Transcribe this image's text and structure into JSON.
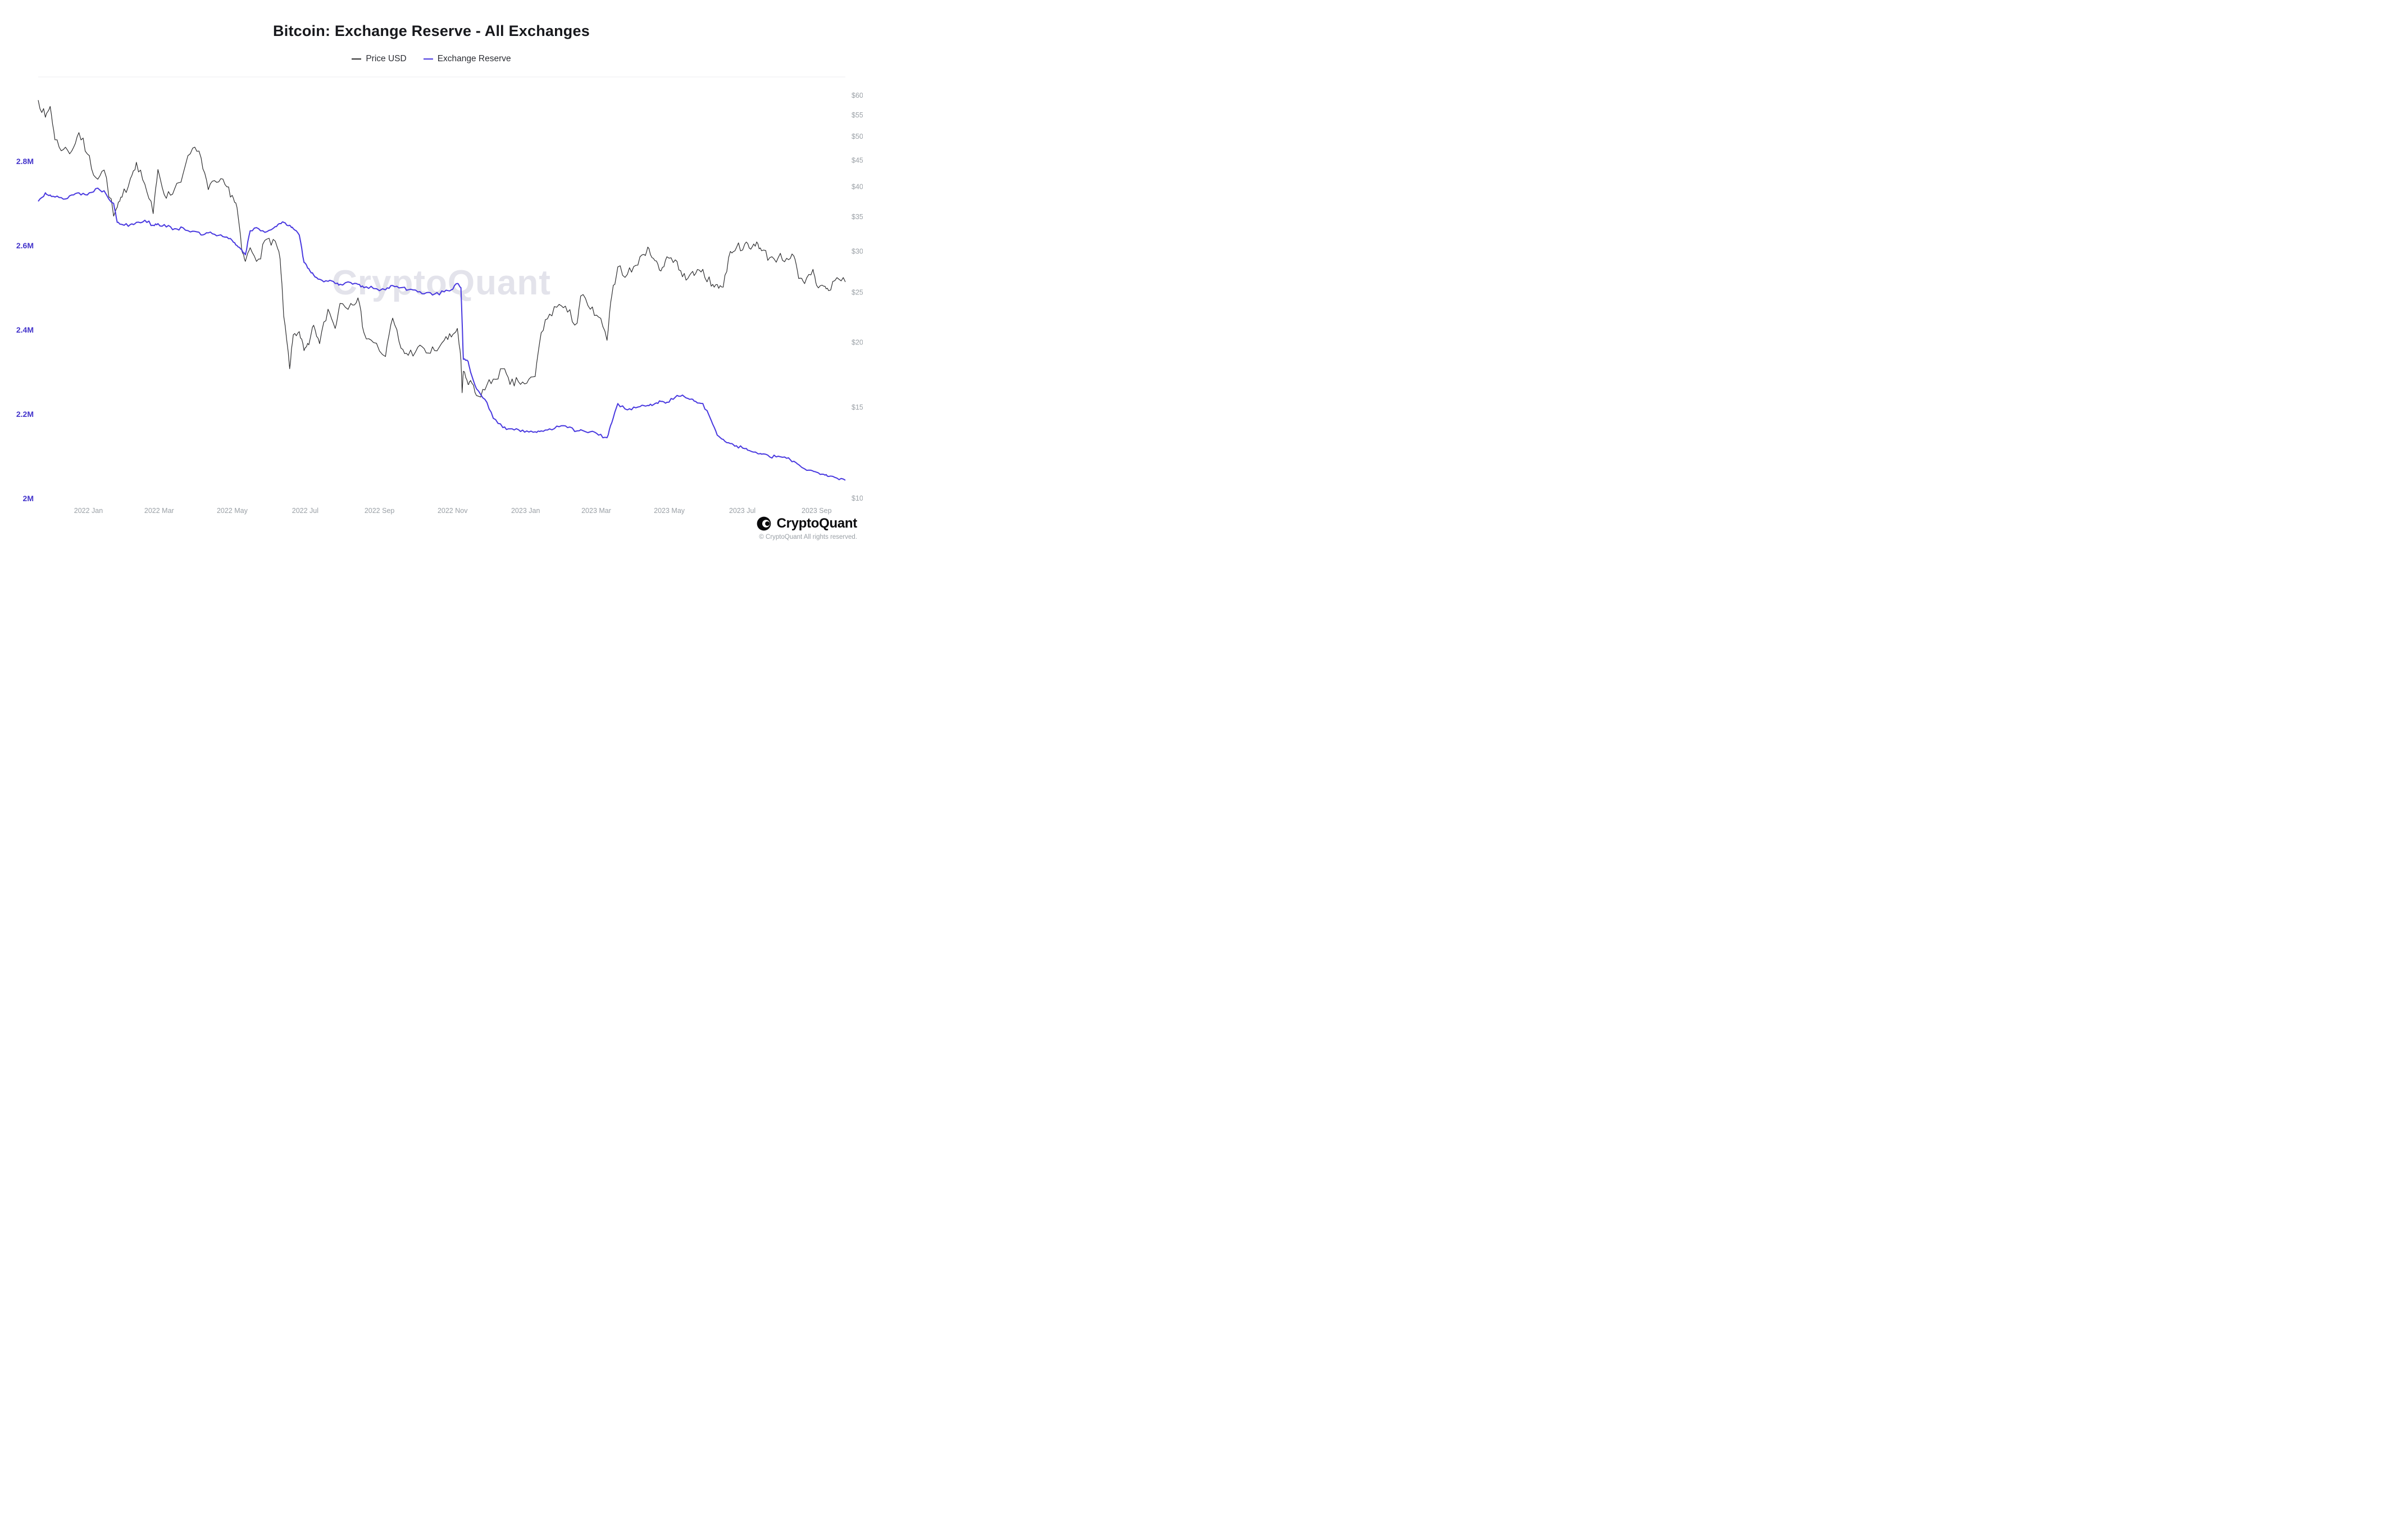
{
  "header": {
    "title": "Bitcoin: Exchange Reserve - All Exchanges"
  },
  "legend": [
    {
      "label": "Price USD",
      "color": "#2d2d2f"
    },
    {
      "label": "Exchange Reserve",
      "color": "#4838DF"
    }
  ],
  "watermark": {
    "text": "CryptoQuant"
  },
  "footer": {
    "brand": "CryptoQuant",
    "copyright": "© CryptoQuant All rights reserved."
  },
  "chart_data": {
    "type": "line",
    "title": "Bitcoin: Exchange Reserve - All Exchanges",
    "grid": "off",
    "legend_position": "top",
    "x_dates": [
      "2021-11-20",
      "2021-11-26",
      "2021-11-30",
      "2021-12-04",
      "2021-12-11",
      "2021-12-18",
      "2021-12-24",
      "2021-12-31",
      "2022-01-07",
      "2022-01-14",
      "2022-01-22",
      "2022-01-25",
      "2022-01-29",
      "2022-02-05",
      "2022-02-10",
      "2022-02-17",
      "2022-02-24",
      "2022-02-28",
      "2022-03-07",
      "2022-03-14",
      "2022-03-21",
      "2022-03-29",
      "2022-04-05",
      "2022-04-11",
      "2022-04-18",
      "2022-04-25",
      "2022-05-01",
      "2022-05-05",
      "2022-05-09",
      "2022-05-12",
      "2022-05-16",
      "2022-05-23",
      "2022-05-30",
      "2022-06-06",
      "2022-06-10",
      "2022-06-13",
      "2022-06-18",
      "2022-06-21",
      "2022-06-26",
      "2022-06-30",
      "2022-07-04",
      "2022-07-08",
      "2022-07-13",
      "2022-07-20",
      "2022-07-26",
      "2022-07-30",
      "2022-08-08",
      "2022-08-14",
      "2022-08-19",
      "2022-08-27",
      "2022-09-06",
      "2022-09-12",
      "2022-09-19",
      "2022-09-25",
      "2022-10-03",
      "2022-10-10",
      "2022-10-17",
      "2022-10-25",
      "2022-10-31",
      "2022-11-05",
      "2022-11-08",
      "2022-11-09",
      "2022-11-10",
      "2022-11-14",
      "2022-11-16",
      "2022-11-21",
      "2022-11-28",
      "2022-12-05",
      "2022-12-13",
      "2022-12-19",
      "2022-12-26",
      "2023-01-02",
      "2023-01-09",
      "2023-01-14",
      "2023-01-21",
      "2023-01-29",
      "2023-02-05",
      "2023-02-13",
      "2023-02-16",
      "2023-02-24",
      "2023-03-03",
      "2023-03-10",
      "2023-03-14",
      "2023-03-19",
      "2023-03-27",
      "2023-04-03",
      "2023-04-10",
      "2023-04-14",
      "2023-04-19",
      "2023-04-24",
      "2023-04-29",
      "2023-05-06",
      "2023-05-12",
      "2023-05-18",
      "2023-05-23",
      "2023-05-29",
      "2023-06-05",
      "2023-06-10",
      "2023-06-15",
      "2023-06-21",
      "2023-06-26",
      "2023-07-03",
      "2023-07-08",
      "2023-07-13",
      "2023-07-17",
      "2023-07-24",
      "2023-07-31",
      "2023-08-07",
      "2023-08-13",
      "2023-08-17",
      "2023-08-22",
      "2023-08-29",
      "2023-09-01",
      "2023-09-07",
      "2023-09-11",
      "2023-09-18",
      "2023-09-25"
    ],
    "series": [
      {
        "name": "Price USD",
        "axis": "right",
        "unit": "USD thousands",
        "color": "#2d2d2f",
        "values": [
          58.8,
          54.5,
          57.2,
          49.3,
          47.2,
          46.9,
          50.9,
          46.3,
          41.7,
          43.1,
          35.1,
          36.5,
          38.2,
          41.5,
          44.6,
          40.5,
          35.5,
          43.2,
          38.0,
          39.7,
          42.4,
          47.5,
          45.5,
          39.5,
          40.8,
          40.4,
          38.5,
          36.5,
          30.1,
          28.7,
          30.5,
          29.0,
          31.7,
          31.4,
          29.0,
          22.5,
          17.8,
          20.7,
          21.0,
          19.3,
          19.8,
          21.6,
          19.9,
          23.2,
          21.3,
          23.8,
          23.8,
          24.4,
          20.9,
          20.0,
          18.8,
          22.3,
          19.5,
          18.9,
          19.6,
          19.1,
          19.3,
          20.2,
          20.5,
          21.3,
          18.5,
          16.0,
          17.6,
          16.6,
          16.9,
          15.8,
          16.2,
          17.0,
          17.8,
          16.6,
          16.8,
          16.7,
          17.2,
          20.9,
          22.7,
          23.7,
          22.9,
          21.8,
          24.6,
          23.2,
          22.4,
          20.2,
          24.7,
          28.0,
          27.1,
          28.2,
          29.6,
          30.4,
          28.8,
          27.5,
          29.3,
          28.9,
          26.8,
          27.0,
          27.2,
          27.7,
          25.7,
          25.9,
          25.6,
          30.0,
          30.5,
          31.0,
          30.3,
          31.3,
          30.1,
          29.2,
          29.2,
          29.1,
          29.4,
          26.6,
          26.0,
          27.7,
          25.8,
          25.7,
          25.2,
          26.7,
          26.2
        ]
      },
      {
        "name": "Exchange Reserve",
        "axis": "left",
        "unit": "M BTC",
        "color": "#4838DF",
        "values": [
          2.705,
          2.725,
          2.72,
          2.715,
          2.71,
          2.72,
          2.725,
          2.72,
          2.735,
          2.73,
          2.7,
          2.655,
          2.65,
          2.65,
          2.655,
          2.66,
          2.648,
          2.652,
          2.644,
          2.64,
          2.642,
          2.634,
          2.625,
          2.63,
          2.623,
          2.62,
          2.612,
          2.6,
          2.59,
          2.578,
          2.635,
          2.64,
          2.633,
          2.645,
          2.652,
          2.655,
          2.648,
          2.64,
          2.625,
          2.56,
          2.545,
          2.53,
          2.52,
          2.515,
          2.51,
          2.508,
          2.512,
          2.508,
          2.5,
          2.498,
          2.495,
          2.505,
          2.5,
          2.495,
          2.49,
          2.488,
          2.485,
          2.49,
          2.495,
          2.51,
          2.5,
          2.42,
          2.33,
          2.325,
          2.3,
          2.26,
          2.235,
          2.19,
          2.168,
          2.165,
          2.163,
          2.16,
          2.158,
          2.16,
          2.165,
          2.17,
          2.168,
          2.16,
          2.163,
          2.158,
          2.15,
          2.144,
          2.18,
          2.225,
          2.21,
          2.215,
          2.22,
          2.22,
          2.225,
          2.23,
          2.228,
          2.24,
          2.245,
          2.235,
          2.23,
          2.225,
          2.185,
          2.15,
          2.14,
          2.13,
          2.125,
          2.118,
          2.112,
          2.108,
          2.105,
          2.098,
          2.1,
          2.095,
          2.088,
          2.08,
          2.07,
          2.065,
          2.062,
          2.057,
          2.052,
          2.048,
          2.043
        ]
      }
    ],
    "left_axis": {
      "scale": "linear",
      "range": [
        2.0,
        3.0
      ],
      "color": "#4334CB",
      "ticks": [
        "2M",
        "2.2M",
        "2.4M",
        "2.6M",
        "2.8M"
      ],
      "tick_values": [
        2.0,
        2.2,
        2.4,
        2.6,
        2.8
      ]
    },
    "right_axis": {
      "scale": "log",
      "range": [
        10,
        65.2
      ],
      "color": "#9aa0a6",
      "ticks": [
        "$10K",
        "$15K",
        "$20K",
        "$25K",
        "$30K",
        "$35K",
        "$40K",
        "$45K",
        "$50K",
        "$55K",
        "$60K"
      ],
      "tick_values": [
        10,
        15,
        20,
        25,
        30,
        35,
        40,
        45,
        50,
        55,
        60
      ]
    },
    "x_ticks": [
      {
        "label": "2022 Jan",
        "date": "2022-01-01"
      },
      {
        "label": "2022 Mar",
        "date": "2022-03-01"
      },
      {
        "label": "2022 May",
        "date": "2022-05-01"
      },
      {
        "label": "2022 Jul",
        "date": "2022-07-01"
      },
      {
        "label": "2022 Sep",
        "date": "2022-09-01"
      },
      {
        "label": "2022 Nov",
        "date": "2022-11-01"
      },
      {
        "label": "2023 Jan",
        "date": "2023-01-01"
      },
      {
        "label": "2023 Mar",
        "date": "2023-03-01"
      },
      {
        "label": "2023 May",
        "date": "2023-05-01"
      },
      {
        "label": "2023 Jul",
        "date": "2023-07-01"
      },
      {
        "label": "2023 Sep",
        "date": "2023-09-01"
      }
    ]
  }
}
